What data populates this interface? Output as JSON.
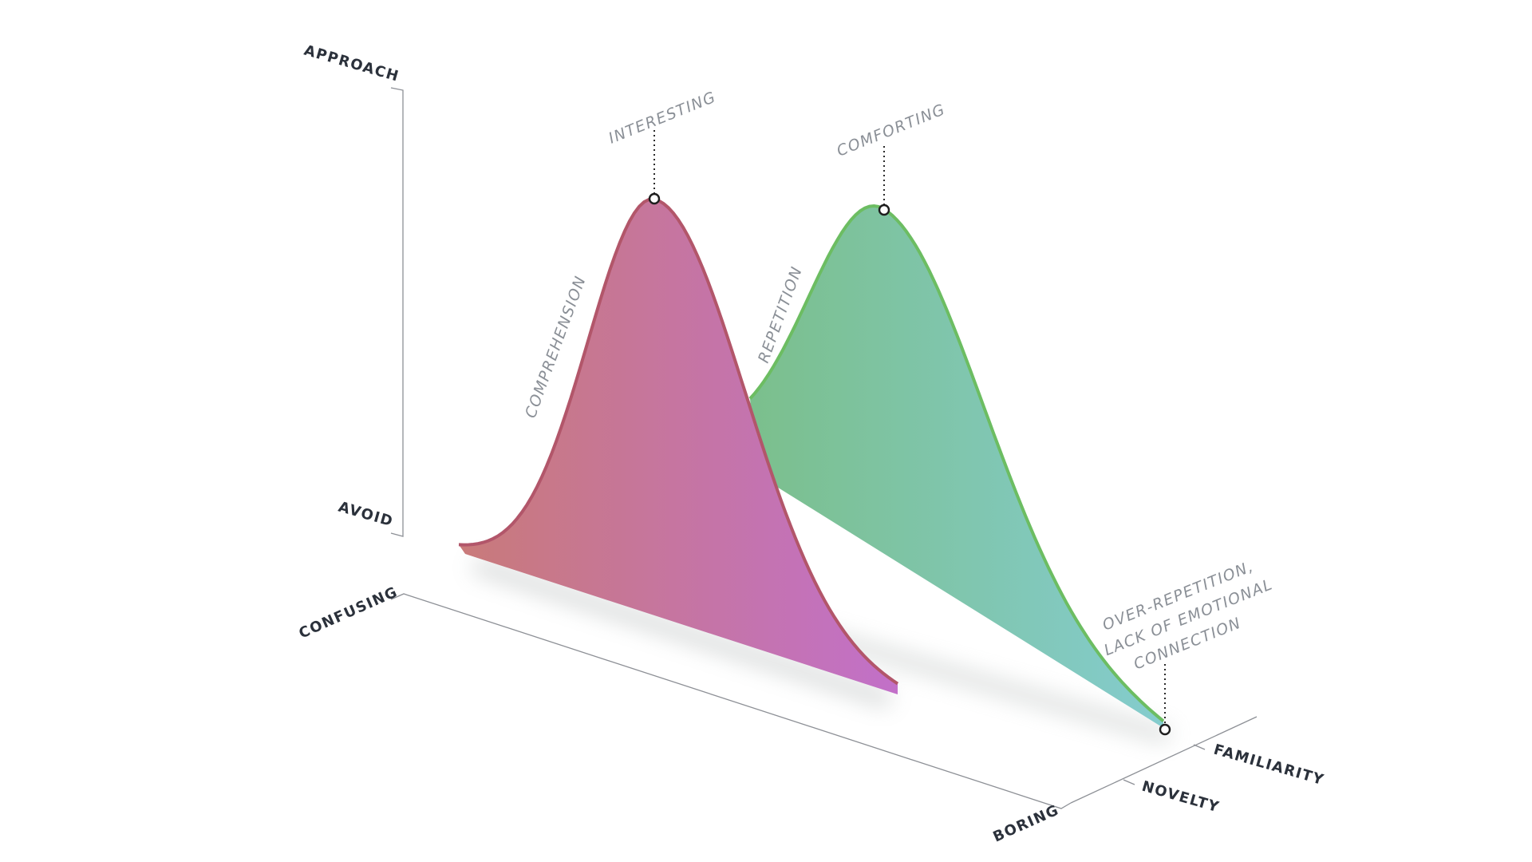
{
  "axes": {
    "vertical": {
      "top_label": "APPROACH",
      "bottom_label": "AVOID"
    },
    "depth": {
      "near_label": "CONFUSING",
      "far_label": "BORING"
    },
    "series_axis": {
      "front_label": "NOVELTY",
      "back_label": "FAMILIARITY"
    }
  },
  "curves": [
    {
      "id": "novelty",
      "slope_label": "COMPREHENSION",
      "peak_label": "INTERESTING",
      "colors": {
        "start": "#c97a79",
        "end": "#c270c9",
        "edge": "#b2566a"
      }
    },
    {
      "id": "familiarity",
      "slope_label": "REPETITION",
      "peak_label": "COMFORTING",
      "colors": {
        "start": "#7bbf8c",
        "end": "#84ccce",
        "edge": "#6cbd62"
      }
    }
  ],
  "tail_annotation": {
    "lines": [
      "OVER-REPETITION,",
      "LACK OF EMOTIONAL",
      "CONNECTION"
    ]
  }
}
